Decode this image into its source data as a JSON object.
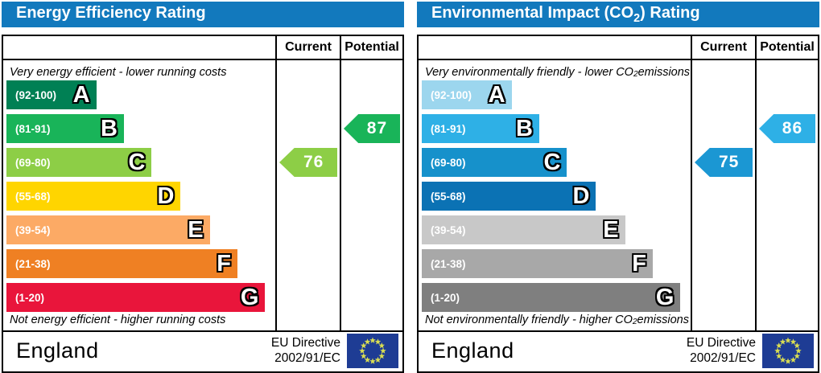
{
  "colors": {
    "header_bg": "#1279bd",
    "eu_flag_bg": "#1e3c94",
    "eu_flag_star": "#d9dd52"
  },
  "panels": [
    {
      "name": "energy-efficiency",
      "title": {
        "pre": "Energy Efficiency Rating",
        "sub": "",
        "post": ""
      },
      "columns": {
        "current": "Current",
        "potential": "Potential"
      },
      "top_note": {
        "pre": "Very energy efficient - lower running costs",
        "sub": "",
        "post": ""
      },
      "bottom_note": {
        "pre": "Not energy efficient - higher running costs",
        "sub": "",
        "post": ""
      },
      "bands": [
        {
          "letter": "A",
          "range": "(92-100)",
          "color": "#008054",
          "width_pct": 34
        },
        {
          "letter": "B",
          "range": "(81-91)",
          "color": "#19b459",
          "width_pct": 44.5
        },
        {
          "letter": "C",
          "range": "(69-80)",
          "color": "#8dce46",
          "width_pct": 55
        },
        {
          "letter": "D",
          "range": "(55-68)",
          "color": "#ffd500",
          "width_pct": 66
        },
        {
          "letter": "E",
          "range": "(39-54)",
          "color": "#fcaa65",
          "width_pct": 77
        },
        {
          "letter": "F",
          "range": "(21-38)",
          "color": "#ef8023",
          "width_pct": 87.5
        },
        {
          "letter": "G",
          "range": "(1-20)",
          "color": "#e9153b",
          "width_pct": 98
        }
      ],
      "current": {
        "value": "76",
        "band": "C",
        "color": "#8dce46"
      },
      "potential": {
        "value": "87",
        "band": "B",
        "color": "#19b459"
      },
      "footer": {
        "region": "England",
        "directive": [
          "EU Directive",
          "2002/91/EC"
        ]
      }
    },
    {
      "name": "environmental-impact",
      "title": {
        "pre": "Environmental Impact (CO",
        "sub": "2",
        "post": ") Rating"
      },
      "columns": {
        "current": "Current",
        "potential": "Potential"
      },
      "top_note": {
        "pre": "Very environmentally friendly - lower CO",
        "sub": "2",
        "post": " emissions"
      },
      "bottom_note": {
        "pre": "Not environmentally friendly - higher CO",
        "sub": "2",
        "post": " emissions"
      },
      "bands": [
        {
          "letter": "A",
          "range": "(92-100)",
          "color": "#9cd6ee",
          "width_pct": 34
        },
        {
          "letter": "B",
          "range": "(81-91)",
          "color": "#2eb0e6",
          "width_pct": 44.5
        },
        {
          "letter": "C",
          "range": "(69-80)",
          "color": "#1691cb",
          "width_pct": 55
        },
        {
          "letter": "D",
          "range": "(55-68)",
          "color": "#0b72b4",
          "width_pct": 66
        },
        {
          "letter": "E",
          "range": "(39-54)",
          "color": "#c8c8c8",
          "width_pct": 77
        },
        {
          "letter": "F",
          "range": "(21-38)",
          "color": "#a8a8a8",
          "width_pct": 87.5
        },
        {
          "letter": "G",
          "range": "(1-20)",
          "color": "#7f7f7f",
          "width_pct": 98
        }
      ],
      "current": {
        "value": "75",
        "band": "C",
        "color": "#1b97d3"
      },
      "potential": {
        "value": "86",
        "band": "B",
        "color": "#2eb0e6"
      },
      "footer": {
        "region": "England",
        "directive": [
          "EU Directive",
          "2002/91/EC"
        ]
      }
    }
  ],
  "chart_data": [
    {
      "type": "bar",
      "title": "Energy Efficiency Rating",
      "orientation": "horizontal",
      "categories": [
        "A",
        "B",
        "C",
        "D",
        "E",
        "F",
        "G"
      ],
      "category_ranges": [
        "92-100",
        "81-91",
        "69-80",
        "55-68",
        "39-54",
        "21-38",
        "1-20"
      ],
      "values": [
        34,
        44.5,
        55,
        66,
        77,
        87.5,
        98
      ],
      "values_note": "bar lengths are fixed scale widths in percent, not data",
      "ratings": {
        "current": 76,
        "current_band": "C",
        "potential": 87,
        "potential_band": "B"
      },
      "xlabel": "",
      "ylabel": "",
      "annotations": [
        "Very energy efficient - lower running costs",
        "Not energy efficient - higher running costs"
      ],
      "legend_position": "none",
      "grid": false
    },
    {
      "type": "bar",
      "title": "Environmental Impact (CO2) Rating",
      "orientation": "horizontal",
      "categories": [
        "A",
        "B",
        "C",
        "D",
        "E",
        "F",
        "G"
      ],
      "category_ranges": [
        "92-100",
        "81-91",
        "69-80",
        "55-68",
        "39-54",
        "21-38",
        "1-20"
      ],
      "values": [
        34,
        44.5,
        55,
        66,
        77,
        87.5,
        98
      ],
      "values_note": "bar lengths are fixed scale widths in percent, not data",
      "ratings": {
        "current": 75,
        "current_band": "C",
        "potential": 86,
        "potential_band": "B"
      },
      "xlabel": "",
      "ylabel": "",
      "annotations": [
        "Very environmentally friendly - lower CO2 emissions",
        "Not environmentally friendly - higher CO2 emissions"
      ],
      "legend_position": "none",
      "grid": false
    }
  ]
}
